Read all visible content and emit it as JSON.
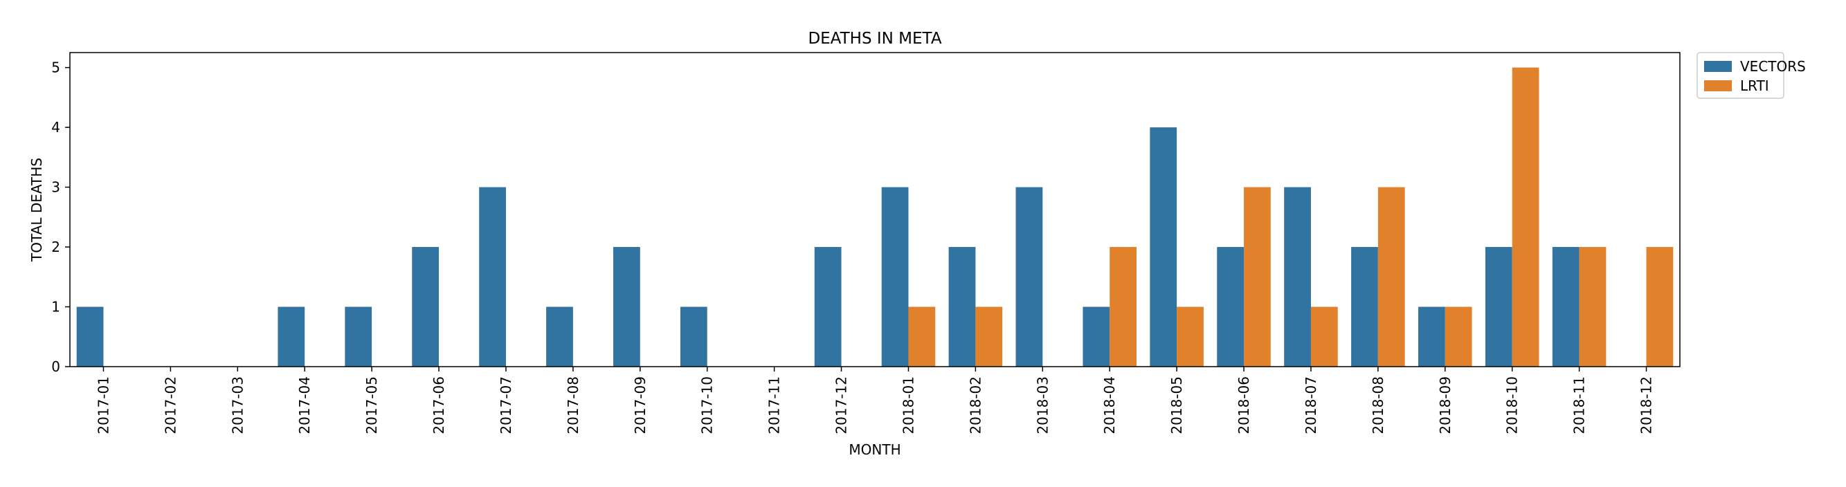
{
  "chart_data": {
    "type": "bar",
    "title": "DEATHS IN META",
    "xlabel": "MONTH",
    "ylabel": "TOTAL DEATHS",
    "ylim": [
      0,
      5.25
    ],
    "yticks": [
      0,
      1,
      2,
      3,
      4,
      5
    ],
    "grid": false,
    "legend_position": "outside-top-right",
    "categories": [
      "2017-01",
      "2017-02",
      "2017-03",
      "2017-04",
      "2017-05",
      "2017-06",
      "2017-07",
      "2017-08",
      "2017-09",
      "2017-10",
      "2017-11",
      "2017-12",
      "2018-01",
      "2018-02",
      "2018-03",
      "2018-04",
      "2018-05",
      "2018-06",
      "2018-07",
      "2018-08",
      "2018-09",
      "2018-10",
      "2018-11",
      "2018-12"
    ],
    "series": [
      {
        "name": "VECTORS",
        "color": "#3274a1",
        "values": [
          1,
          0,
          0,
          1,
          1,
          2,
          3,
          1,
          2,
          1,
          0,
          2,
          3,
          2,
          3,
          1,
          4,
          2,
          3,
          2,
          1,
          2,
          2,
          0
        ]
      },
      {
        "name": "LRTI",
        "color": "#e1812c",
        "values": [
          0,
          0,
          0,
          0,
          0,
          0,
          0,
          0,
          0,
          0,
          0,
          0,
          1,
          1,
          0,
          2,
          1,
          3,
          1,
          3,
          1,
          5,
          2,
          2
        ]
      }
    ]
  }
}
